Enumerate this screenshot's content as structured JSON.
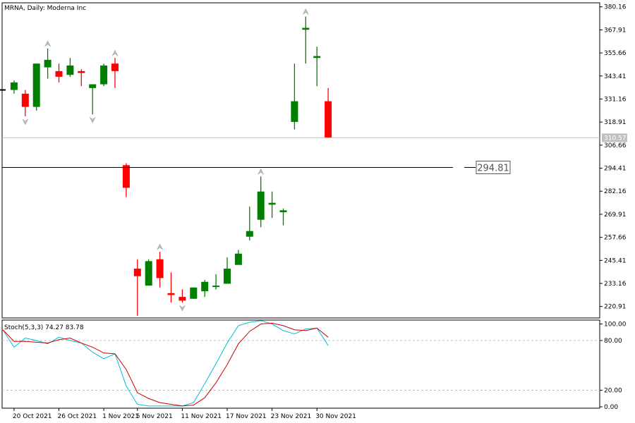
{
  "header": {
    "title": "MRNA, Daily:  Moderna Inc"
  },
  "chart_data": [
    {
      "type": "candlestick",
      "title": "MRNA, Daily:  Moderna Inc",
      "x_tick_labels": [
        "20 Oct 2021",
        "26 Oct 2021",
        "1 Nov 2021",
        "5 Nov 2021",
        "11 Nov 2021",
        "17 Nov 2021",
        "23 Nov 2021",
        "30 Nov 2021"
      ],
      "y_tick_labels": [
        "380.16",
        "367.91",
        "355.66",
        "343.41",
        "331.16",
        "318.91",
        "306.66",
        "294.41",
        "282.16",
        "269.91",
        "257.66",
        "245.41",
        "233.16",
        "220.91"
      ],
      "ylim": [
        214.8,
        382.3
      ],
      "candles": [
        {
          "date": "19 Oct 2021",
          "open": 336,
          "high": 336,
          "low": 336,
          "close": 336
        },
        {
          "date": "20 Oct 2021",
          "open": 336,
          "high": 341,
          "low": 334,
          "close": 340
        },
        {
          "date": "21 Oct 2021",
          "open": 334,
          "high": 336,
          "low": 322,
          "close": 327
        },
        {
          "date": "22 Oct 2021",
          "open": 327,
          "high": 350,
          "low": 325,
          "close": 350
        },
        {
          "date": "25 Oct 2021",
          "open": 348,
          "high": 358,
          "low": 342,
          "close": 352
        },
        {
          "date": "26 Oct 2021",
          "open": 346,
          "high": 350,
          "low": 340,
          "close": 343
        },
        {
          "date": "27 Oct 2021",
          "open": 344,
          "high": 353,
          "low": 343,
          "close": 349
        },
        {
          "date": "28 Oct 2021",
          "open": 346,
          "high": 347,
          "low": 338,
          "close": 345
        },
        {
          "date": "29 Oct 2021",
          "open": 337,
          "high": 339,
          "low": 323,
          "close": 339
        },
        {
          "date": "1 Nov 2021",
          "open": 339,
          "high": 350,
          "low": 338,
          "close": 349
        },
        {
          "date": "2 Nov 2021",
          "open": 350,
          "high": 353,
          "low": 337,
          "close": 346
        },
        {
          "date": "4 Nov 2021",
          "open": 296,
          "high": 297,
          "low": 279,
          "close": 284
        },
        {
          "date": "5 Nov 2021",
          "open": 241,
          "high": 246,
          "low": 216,
          "close": 237
        },
        {
          "date": "8 Nov 2021",
          "open": 232,
          "high": 246,
          "low": 232,
          "close": 245
        },
        {
          "date": "9 Nov 2021",
          "open": 246,
          "high": 250,
          "low": 231,
          "close": 236
        },
        {
          "date": "10 Nov 2021",
          "open": 228,
          "high": 239,
          "low": 223,
          "close": 227
        },
        {
          "date": "11 Nov 2021",
          "open": 226,
          "high": 230,
          "low": 223,
          "close": 224
        },
        {
          "date": "12 Nov 2021",
          "open": 225,
          "high": 231,
          "low": 225,
          "close": 231
        },
        {
          "date": "15 Nov 2021",
          "open": 229,
          "high": 235,
          "low": 226,
          "close": 234
        },
        {
          "date": "16 Nov 2021",
          "open": 232,
          "high": 238,
          "low": 230,
          "close": 232
        },
        {
          "date": "17 Nov 2021",
          "open": 233,
          "high": 247,
          "low": 233,
          "close": 241
        },
        {
          "date": "18 Nov 2021",
          "open": 243,
          "high": 251,
          "low": 244,
          "close": 249
        },
        {
          "date": "19 Nov 2021",
          "open": 258,
          "high": 274,
          "low": 256,
          "close": 261
        },
        {
          "date": "22 Nov 2021",
          "open": 267,
          "high": 290,
          "low": 263,
          "close": 282
        },
        {
          "date": "23 Nov 2021",
          "open": 275,
          "high": 282,
          "low": 268,
          "close": 276
        },
        {
          "date": "24 Nov 2021",
          "open": 271,
          "high": 273,
          "low": 264,
          "close": 272
        },
        {
          "date": "26 Nov 2021",
          "open": 319,
          "high": 350,
          "low": 315,
          "close": 330
        },
        {
          "date": "29 Nov 2021",
          "open": 368,
          "high": 375,
          "low": 350,
          "close": 369
        },
        {
          "date": "30 Nov 2021",
          "open": 353,
          "high": 359,
          "low": 338,
          "close": 354
        },
        {
          "date": "1 Dec 2021",
          "open": 330,
          "high": 337,
          "low": 310.57,
          "close": 310.57
        }
      ],
      "fractals": {
        "up": [
          "25 Oct 2021",
          "2 Nov 2021",
          "9 Nov 2021",
          "22 Nov 2021",
          "29 Nov 2021"
        ],
        "down": [
          "21 Oct 2021",
          "29 Oct 2021",
          "11 Nov 2021"
        ]
      },
      "horizontal_line": {
        "value": 294.81,
        "label": "294.81"
      },
      "current_price": {
        "value": 310.57,
        "label": "310.57"
      },
      "colors": {
        "bull": "#008000",
        "bear": "#ff0000",
        "line": "#000000",
        "grid": "#c0c0c0",
        "fractal": "#bbbbbb",
        "current_tag": "#c0c0c0"
      }
    },
    {
      "type": "line",
      "title": "Stoch(5,3,3) 74.27 83.78",
      "y_tick_labels": [
        "100.00",
        "80.00",
        "20.00",
        "0.00"
      ],
      "ylim": [
        0,
        103
      ],
      "levels": [
        80,
        20
      ],
      "series": [
        {
          "name": "",
          "color": "#00bcd4",
          "values": [
            93,
            72,
            83,
            80,
            76,
            84,
            80,
            77,
            66,
            58,
            64,
            25,
            3,
            1,
            1,
            1,
            1,
            5,
            28,
            52,
            77,
            98,
            102,
            104,
            100,
            92,
            88,
            94,
            95,
            74
          ]
        },
        {
          "name": "",
          "color": "#cc0000",
          "values": [
            93,
            79,
            79,
            78,
            77,
            81,
            83,
            77,
            72,
            65,
            64,
            45,
            17,
            10,
            5,
            3,
            1,
            2,
            11,
            29,
            51,
            76,
            91,
            100,
            101,
            98,
            93,
            92,
            95,
            84
          ]
        }
      ]
    }
  ]
}
